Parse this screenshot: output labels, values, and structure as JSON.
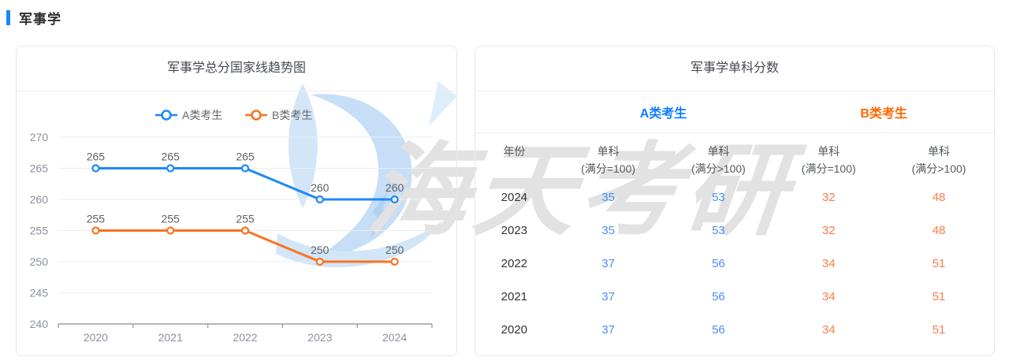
{
  "page": {
    "section_title": "军事学",
    "accent_color": "#1A86F8",
    "watermark_text": "海天考研",
    "watermark_logo": "haitian-swoosh-logo"
  },
  "chart_data": {
    "type": "line",
    "title": "军事学总分国家线趋势图",
    "categories": [
      "2020",
      "2021",
      "2022",
      "2023",
      "2024"
    ],
    "series": [
      {
        "name": "A类考生",
        "color": "#1E88FA",
        "values": [
          265,
          265,
          265,
          260,
          260
        ]
      },
      {
        "name": "B类考生",
        "color": "#F87420",
        "values": [
          255,
          255,
          255,
          250,
          250
        ]
      }
    ],
    "ylim": [
      240,
      270
    ],
    "ytick_step": 5,
    "grid": true,
    "legend_position": "top",
    "point_style": "hollow-circle",
    "data_labels": true,
    "xlabel": "",
    "ylabel": "",
    "axis_label_color": "#8b919c",
    "data_label_color": "#5d6166"
  },
  "table_panel": {
    "title": "军事学单科分数",
    "group_headers": [
      {
        "label": "A类考生",
        "color": "#0D7DFF"
      },
      {
        "label": "B类考生",
        "color": "#FF6600"
      }
    ],
    "columns": [
      {
        "line1": "年份",
        "line2": ""
      },
      {
        "line1": "单科",
        "line2": "(满分=100)"
      },
      {
        "line1": "单科",
        "line2": "(满分>100)"
      },
      {
        "line1": "单科",
        "line2": "(满分=100)"
      },
      {
        "line1": "单科",
        "line2": "(满分>100)"
      }
    ],
    "rows": [
      {
        "year": "2024",
        "values": [
          "35",
          "53",
          "32",
          "48"
        ]
      },
      {
        "year": "2023",
        "values": [
          "35",
          "53",
          "32",
          "48"
        ]
      },
      {
        "year": "2022",
        "values": [
          "37",
          "56",
          "34",
          "51"
        ]
      },
      {
        "year": "2021",
        "values": [
          "37",
          "56",
          "34",
          "51"
        ]
      },
      {
        "year": "2020",
        "values": [
          "37",
          "56",
          "34",
          "51"
        ]
      }
    ],
    "year_color": "#333333",
    "value_colors": [
      "#4A8EF7",
      "#4A8EF7",
      "#FB7C49",
      "#FB7C49"
    ]
  }
}
